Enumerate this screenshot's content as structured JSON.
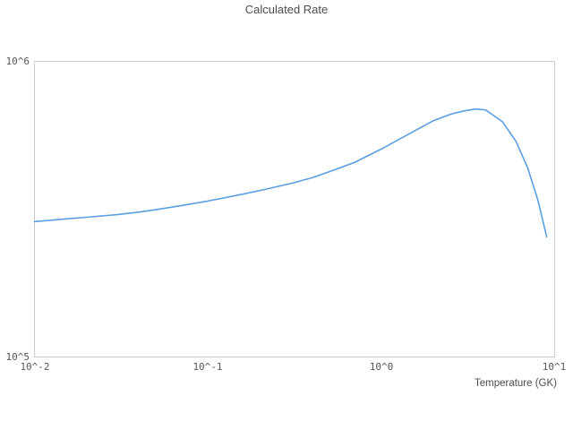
{
  "title": "Calculated Rate",
  "axes": {
    "x_label": "Temperature (GK)",
    "x_tick_labels": [
      "10^-2",
      "10^-1",
      "10^0",
      "10^1"
    ],
    "y_tick_labels": [
      "10^5",
      "10^6"
    ]
  },
  "colors": {
    "line": "#5b9ee2",
    "plot_border": "#cccccc",
    "text": "#4d4d4d"
  },
  "chart_data": {
    "type": "line",
    "title": "Calculated Rate",
    "xlabel": "Temperature (GK)",
    "ylabel": "",
    "x_scale": "log",
    "y_scale": "log",
    "xlim": [
      0.01,
      10
    ],
    "ylim": [
      100000,
      1000000
    ],
    "x_ticks": [
      0.01,
      0.1,
      1,
      10
    ],
    "x_tick_labels": [
      "10^-2",
      "10^-1",
      "10^0",
      "10^1"
    ],
    "y_ticks": [
      100000,
      1000000
    ],
    "y_tick_labels": [
      "10^5",
      "10^6"
    ],
    "grid": false,
    "legend": "none",
    "line_color": "#5b9ee2",
    "series": [
      {
        "name": "Calculated Rate",
        "x": [
          0.01,
          0.015,
          0.02,
          0.03,
          0.04,
          0.05,
          0.07,
          0.1,
          0.15,
          0.2,
          0.3,
          0.4,
          0.5,
          0.7,
          1.0,
          1.5,
          2.0,
          2.5,
          3.0,
          3.5,
          4.0,
          5.0,
          6.0,
          7.0,
          8.0,
          9.0
        ],
        "y": [
          287000,
          293000,
          297000,
          303000,
          309000,
          315000,
          325000,
          337000,
          353000,
          366000,
          386000,
          404000,
          423000,
          455000,
          505000,
          575000,
          630000,
          662000,
          680000,
          690000,
          685000,
          625000,
          535000,
          435000,
          340000,
          255000
        ]
      }
    ]
  }
}
